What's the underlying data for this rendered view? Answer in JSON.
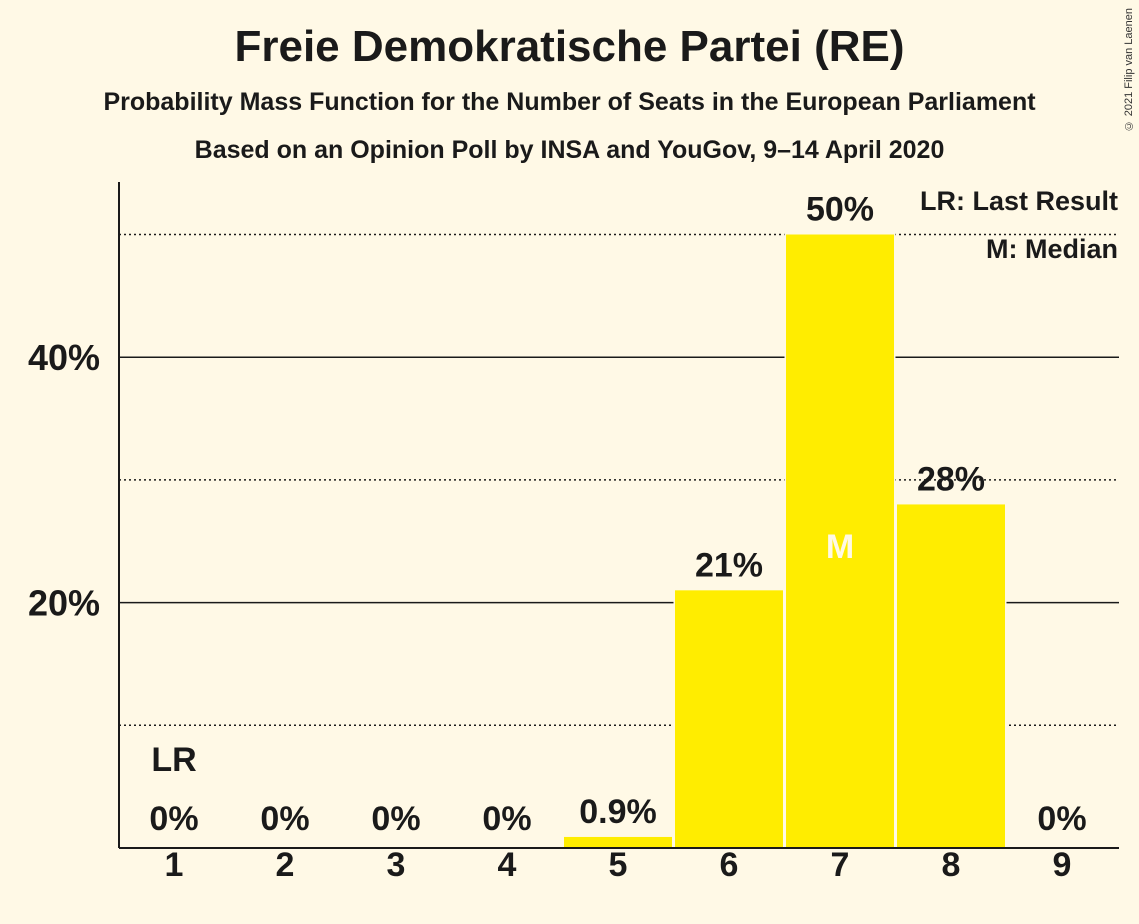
{
  "title": "Freie Demokratische Partei (RE)",
  "subtitle": "Probability Mass Function for the Number of Seats in the European Parliament",
  "subtitle2": "Based on an Opinion Poll by INSA and YouGov, 9–14 April 2020",
  "copyright": "© 2021 Filip van Laenen",
  "legend": {
    "last_result": "LR: Last Result",
    "median": "M: Median"
  },
  "colors": {
    "bar": "#ffed00",
    "background": "#fff9e6",
    "text": "#1a1a1a",
    "median_label": "#fff9e6"
  },
  "chart_data": {
    "type": "bar",
    "categories": [
      "1",
      "2",
      "3",
      "4",
      "5",
      "6",
      "7",
      "8",
      "9"
    ],
    "values": [
      0,
      0,
      0,
      0,
      0.9,
      21,
      50,
      28,
      0
    ],
    "value_labels": [
      "0%",
      "0%",
      "0%",
      "0%",
      "0.9%",
      "21%",
      "50%",
      "28%",
      "0%"
    ],
    "ylim": [
      0,
      54
    ],
    "yticks_major": [
      20,
      40
    ],
    "ytick_labels": [
      "20%",
      "40%"
    ],
    "yticks_minor": [
      10,
      30,
      50
    ],
    "last_result_index": 0,
    "last_result_label": "LR",
    "median_index": 6,
    "median_label": "M",
    "xlabel": "",
    "ylabel": "",
    "legend_placement": "top-right"
  }
}
